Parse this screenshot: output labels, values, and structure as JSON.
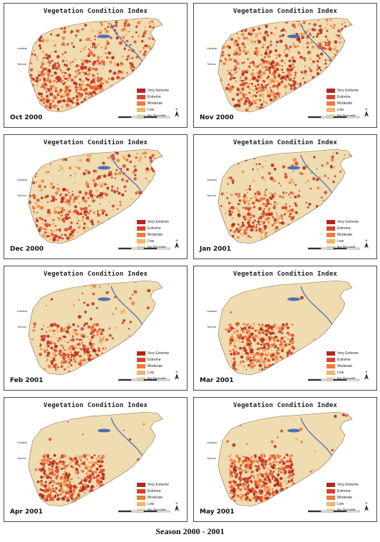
{
  "panel_title": "Vegetation Condition  Index",
  "panels": [
    {
      "month": "Oct 2000",
      "drought_density": 0.85,
      "southwest_focus": 0.2
    },
    {
      "month": "Nov 2000",
      "drought_density": 0.9,
      "southwest_focus": 0.2
    },
    {
      "month": "Dec 2000",
      "drought_density": 0.55,
      "southwest_focus": 0.3
    },
    {
      "month": "Jan 2001",
      "drought_density": 0.45,
      "southwest_focus": 0.4
    },
    {
      "month": "Feb 2001",
      "drought_density": 0.35,
      "southwest_focus": 0.6
    },
    {
      "month": "Mar 2001",
      "drought_density": 0.25,
      "southwest_focus": 0.85
    },
    {
      "month": "Apr 2001",
      "drought_density": 0.3,
      "southwest_focus": 0.9
    },
    {
      "month": "May 2001",
      "drought_density": 0.4,
      "southwest_focus": 0.85
    }
  ],
  "legend": [
    {
      "label": "Very Extreme",
      "color": "#b3261e"
    },
    {
      "label": "Extreme",
      "color": "#d8432a"
    },
    {
      "label": "Moderate",
      "color": "#ee7a3a"
    },
    {
      "label": "Low",
      "color": "#f5b36a"
    },
    {
      "label": "No Drought",
      "color": "#efdcb0"
    }
  ],
  "cities": [
    "Lattakia",
    "Tartous"
  ],
  "north_label": "N",
  "caption": "Season 2000 - 2001"
}
